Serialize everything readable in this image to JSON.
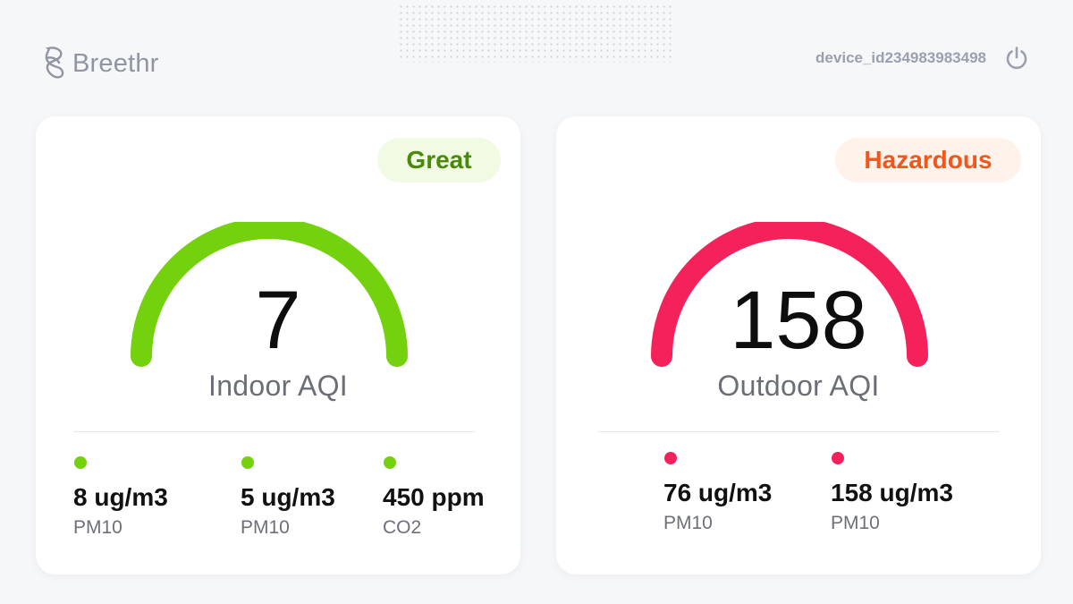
{
  "app": {
    "name": "Breethr"
  },
  "header": {
    "device_id": "device_id234983983498"
  },
  "indoor": {
    "status": "Great",
    "value": "7",
    "label": "Indoor AQI",
    "color": "#74d10e",
    "metrics": [
      {
        "value": "8 ug/m3",
        "label": "PM10"
      },
      {
        "value": "5 ug/m3",
        "label": "PM10"
      },
      {
        "value": "450 ppm",
        "label": "CO2"
      }
    ]
  },
  "outdoor": {
    "status": "Hazardous",
    "value": "158",
    "label": "Outdoor AQI",
    "color": "#f4215b",
    "metrics": [
      {
        "value": "76 ug/m3",
        "label": "PM10"
      },
      {
        "value": "158 ug/m3",
        "label": "PM10"
      }
    ]
  },
  "icons": {
    "logo": "breethr-logo-icon",
    "power": "power-icon"
  }
}
